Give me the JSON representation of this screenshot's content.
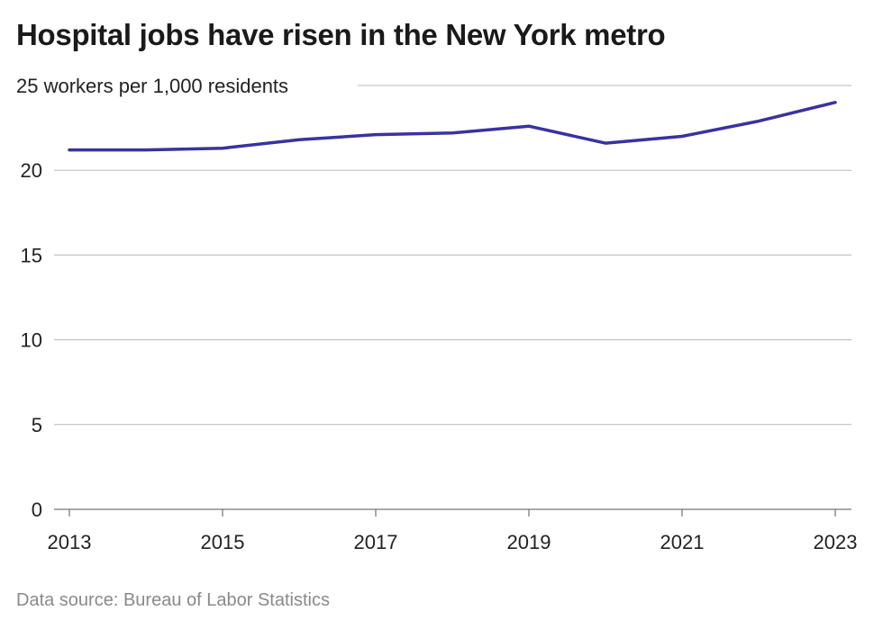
{
  "title": "Hospital jobs have risen in the New York metro",
  "source": "Data source: Bureau of Labor Statistics",
  "chart_data": {
    "type": "line",
    "title": "Hospital jobs have risen in the New York metro",
    "ylabel": "workers per 1,000 residents",
    "top_tick_label": "25 workers per 1,000 residents",
    "xlabel": "",
    "x": [
      2013,
      2014,
      2015,
      2016,
      2017,
      2018,
      2019,
      2020,
      2021,
      2022,
      2023
    ],
    "y": [
      21.2,
      21.2,
      21.3,
      21.8,
      22.1,
      22.2,
      22.6,
      21.6,
      22.0,
      22.9,
      24.0
    ],
    "x_ticks": [
      "2013",
      "2015",
      "2017",
      "2019",
      "2021",
      "2023"
    ],
    "y_ticks": [
      0,
      5,
      10,
      15,
      20,
      25
    ],
    "ylim": [
      0,
      25
    ],
    "xlim": [
      2013,
      2023
    ],
    "grid": "horizontal",
    "line_color": "#3a32a0",
    "grid_color": "#b8b8b8"
  }
}
